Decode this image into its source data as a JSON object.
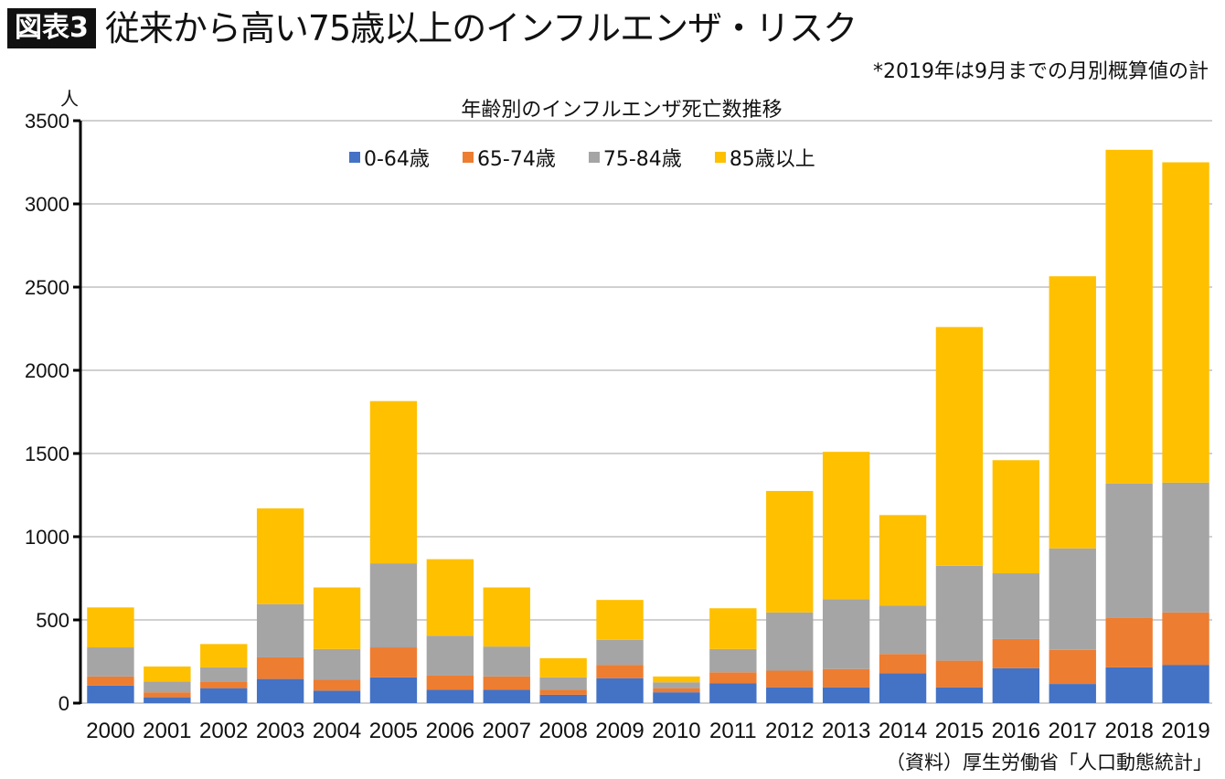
{
  "header": {
    "badge": "図表3",
    "title": "従来から高い75歳以上のインフルエンザ・リスク",
    "note": "*2019年は9月までの月別概算値の計"
  },
  "source": "（資料）厚生労働省「人口動態統計」",
  "chart_data": {
    "type": "bar",
    "stacked": true,
    "title": "年齢別のインフルエンザ死亡数推移",
    "xlabel": "",
    "ylabel": "人",
    "ylim": [
      0,
      3500
    ],
    "yticks": [
      0,
      500,
      1000,
      1500,
      2000,
      2500,
      3000,
      3500
    ],
    "grid": true,
    "legend_position": "top-center",
    "categories": [
      "2000",
      "2001",
      "2002",
      "2003",
      "2004",
      "2005",
      "2006",
      "2007",
      "2008",
      "2009",
      "2010",
      "2011",
      "2012",
      "2013",
      "2014",
      "2015",
      "2016",
      "2017",
      "2018",
      "2019"
    ],
    "series": [
      {
        "name": "0-64歳",
        "color": "#4472C4",
        "values": [
          105,
          35,
          90,
          145,
          75,
          155,
          80,
          80,
          50,
          150,
          65,
          120,
          95,
          95,
          180,
          95,
          210,
          115,
          215,
          230
        ]
      },
      {
        "name": "65-74歳",
        "color": "#ED7D31",
        "values": [
          55,
          30,
          40,
          130,
          65,
          180,
          85,
          80,
          30,
          80,
          25,
          65,
          100,
          110,
          115,
          160,
          175,
          205,
          300,
          315
        ]
      },
      {
        "name": "75-84歳",
        "color": "#A5A5A5",
        "values": [
          175,
          65,
          85,
          320,
          185,
          505,
          240,
          180,
          75,
          150,
          35,
          140,
          350,
          420,
          290,
          570,
          395,
          610,
          805,
          780
        ]
      },
      {
        "name": "85歳以上",
        "color": "#FFC000",
        "values": [
          240,
          90,
          140,
          575,
          370,
          975,
          460,
          355,
          115,
          240,
          35,
          245,
          730,
          885,
          545,
          1435,
          680,
          1635,
          2005,
          1925
        ]
      }
    ]
  }
}
